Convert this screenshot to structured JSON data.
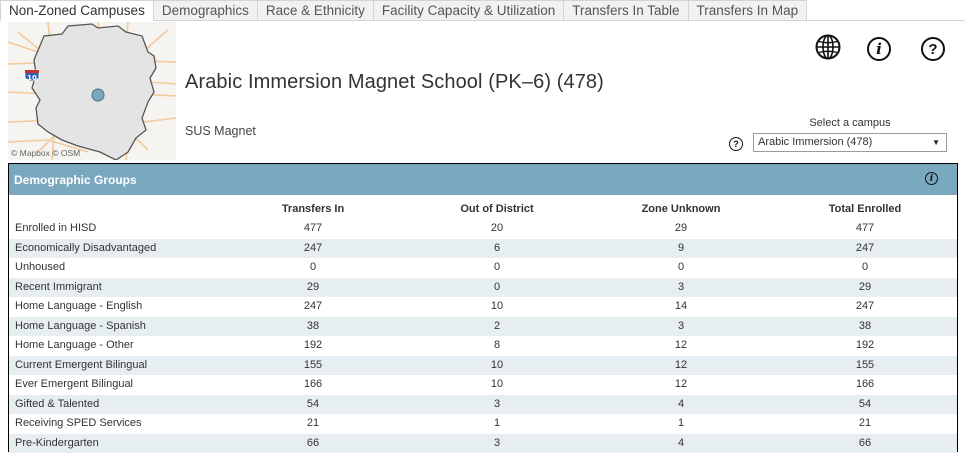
{
  "tabs": [
    {
      "label": "Non-Zoned Campuses",
      "active": true
    },
    {
      "label": "Demographics",
      "active": false
    },
    {
      "label": "Race & Ethnicity",
      "active": false
    },
    {
      "label": "Facility Capacity & Utilization",
      "active": false
    },
    {
      "label": "Transfers In Table",
      "active": false
    },
    {
      "label": "Transfers In Map",
      "active": false
    }
  ],
  "map": {
    "attribution": "© Mapbox  © OSM",
    "highway_shield": "10"
  },
  "header": {
    "title": "Arabic Immersion Magnet School (PK–6) (478)",
    "subtitle": "SUS Magnet"
  },
  "toolbar": {
    "globe_icon": "globe-icon",
    "info_label": "i",
    "help_label": "?"
  },
  "campus_select": {
    "label": "Select a campus",
    "value": "Arabic Immersion (478)",
    "help_label": "?"
  },
  "table": {
    "title": "Demographic Groups",
    "info_label": "i",
    "columns": [
      "Transfers In",
      "Out of District",
      "Zone Unknown",
      "Total Enrolled"
    ],
    "rows": [
      {
        "label": "Enrolled in HISD",
        "values": [
          "477",
          "20",
          "29",
          "477"
        ]
      },
      {
        "label": "Economically Disadvantaged",
        "values": [
          "247",
          "6",
          "9",
          "247"
        ]
      },
      {
        "label": "Unhoused",
        "values": [
          "0",
          "0",
          "0",
          "0"
        ]
      },
      {
        "label": "Recent Immigrant",
        "values": [
          "29",
          "0",
          "3",
          "29"
        ]
      },
      {
        "label": "Home Language - English",
        "values": [
          "247",
          "10",
          "14",
          "247"
        ]
      },
      {
        "label": "Home Language - Spanish",
        "values": [
          "38",
          "2",
          "3",
          "38"
        ]
      },
      {
        "label": "Home Language - Other",
        "values": [
          "192",
          "8",
          "12",
          "192"
        ]
      },
      {
        "label": "Current Emergent Bilingual",
        "values": [
          "155",
          "10",
          "12",
          "155"
        ]
      },
      {
        "label": "Ever Emergent Bilingual",
        "values": [
          "166",
          "10",
          "12",
          "166"
        ]
      },
      {
        "label": "Gifted & Talented",
        "values": [
          "54",
          "3",
          "4",
          "54"
        ]
      },
      {
        "label": "Receiving SPED Services",
        "values": [
          "21",
          "1",
          "1",
          "21"
        ]
      },
      {
        "label": "Pre-Kindergarten",
        "values": [
          "66",
          "3",
          "4",
          "66"
        ]
      }
    ]
  }
}
